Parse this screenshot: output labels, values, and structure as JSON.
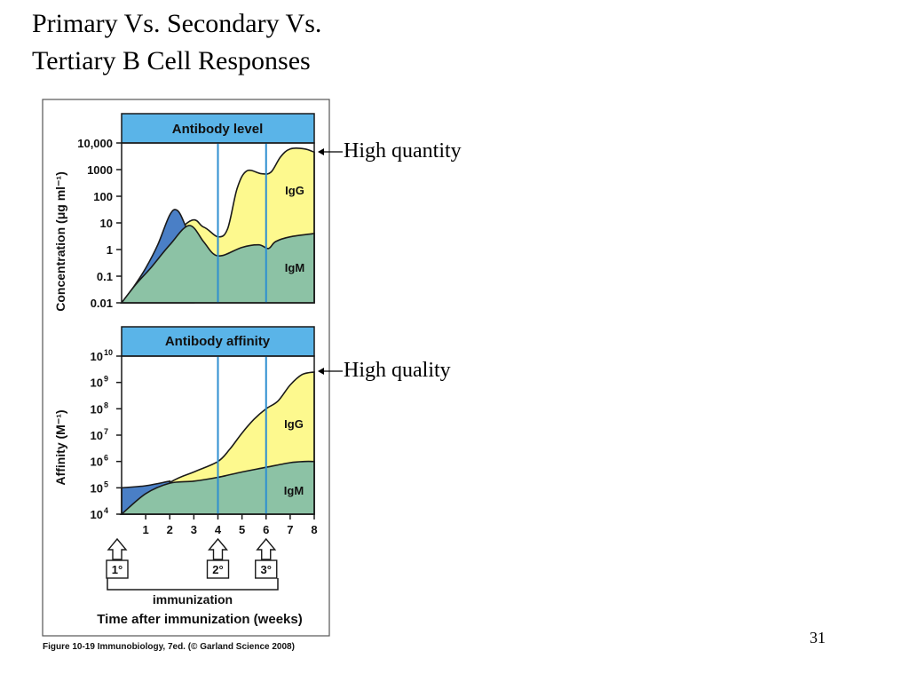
{
  "slide": {
    "title_line1": "Primary Vs. Secondary Vs.",
    "title_line2": "Tertiary  B Cell Responses",
    "annotation_quantity": "High quantity",
    "annotation_quality": "High quality",
    "page_number": "31"
  },
  "figure": {
    "immunization_label": "immunization",
    "xlabel": "Time after immunization (weeks)",
    "caption": "Figure 10-19  Immunobiology, 7ed. (© Garland Science 2008)",
    "markers": [
      {
        "label": "1°",
        "week": 0
      },
      {
        "label": "2°",
        "week": 4
      },
      {
        "label": "3°",
        "week": 6
      }
    ]
  },
  "colors": {
    "panel_header": "#5ab4e8",
    "igg_fill": "#fdf98e",
    "igm_fill": "#8cc2a5",
    "primary_peak_fill": "#4a7fc6",
    "vline": "#2f8fd0",
    "outline": "#1a1a1a"
  },
  "chart_data": [
    {
      "type": "area",
      "title": "Antibody level",
      "ylabel": "Concentration (μg ml⁻¹)",
      "xlabel": "Time after immunization (weeks)",
      "x_ticks": [
        "1",
        "2",
        "3",
        "4",
        "5",
        "6",
        "7",
        "8"
      ],
      "y_ticks": [
        "10,000",
        "1000",
        "100",
        "10",
        "1",
        "0.1",
        "0.01"
      ],
      "y_scale": "log",
      "ylim": [
        0.01,
        10000
      ],
      "xlim": [
        0,
        8
      ],
      "immunization_weeks": [
        0,
        4,
        6
      ],
      "series": [
        {
          "name": "IgM",
          "x": [
            0,
            0.6,
            1.2,
            2.0,
            2.8,
            3.4,
            3.8,
            4.2,
            5.0,
            5.7,
            6.1,
            6.4,
            7.0,
            8.0
          ],
          "y": [
            0.01,
            0.05,
            0.2,
            1.5,
            8,
            2,
            0.7,
            0.6,
            1.2,
            1.5,
            1.1,
            2,
            3,
            4
          ]
        },
        {
          "name": "IgG",
          "x": [
            0,
            2.6,
            3.4,
            4.0,
            4.4,
            4.8,
            5.2,
            5.8,
            6.2,
            6.6,
            7.0,
            7.6,
            8.0
          ],
          "y": [
            0.01,
            8,
            7,
            3,
            6,
            200,
            900,
            700,
            800,
            3000,
            6000,
            6000,
            4500
          ]
        },
        {
          "name": "",
          "x": [
            0,
            0.5,
            1.0,
            1.5,
            2.0,
            2.3,
            2.6,
            3.0
          ],
          "y": [
            0.01,
            0.04,
            0.2,
            1.5,
            20,
            30,
            10,
            1
          ]
        }
      ],
      "series_labels": [
        "IgG",
        "IgM"
      ]
    },
    {
      "type": "area",
      "title": "Antibody affinity",
      "ylabel": "Affinity (M⁻¹)",
      "xlabel": "Time after immunization (weeks)",
      "x_ticks": [
        "1",
        "2",
        "3",
        "4",
        "5",
        "6",
        "7",
        "8"
      ],
      "y_ticks": [
        "10",
        "10",
        "10",
        "10",
        "10",
        "10",
        "10"
      ],
      "y_tick_exponents": [
        "10",
        "9",
        "8",
        "7",
        "6",
        "5",
        "4"
      ],
      "y_scale": "log",
      "ylim": [
        10000,
        10000000000
      ],
      "xlim": [
        0,
        8
      ],
      "immunization_weeks": [
        0,
        4,
        6
      ],
      "series": [
        {
          "name": "IgM",
          "x": [
            0,
            1,
            2,
            3,
            4,
            5,
            6,
            7,
            7.6,
            8
          ],
          "y": [
            10000,
            60000,
            150000,
            180000,
            250000,
            400000,
            600000,
            900000,
            1000000,
            1000000
          ]
        },
        {
          "name": "IgG",
          "x": [
            0,
            2,
            3,
            4,
            4.5,
            5,
            5.5,
            6,
            6.5,
            7,
            7.5,
            8
          ],
          "y": [
            10000,
            160000,
            400000,
            1000000,
            3000000,
            12000000,
            40000000,
            100000000,
            200000000,
            800000000,
            2000000000,
            2500000000
          ]
        },
        {
          "name": "",
          "x": [
            0,
            1,
            2
          ],
          "y": [
            100000,
            120000,
            180000
          ]
        }
      ],
      "series_labels": [
        "IgG",
        "IgM"
      ]
    }
  ]
}
